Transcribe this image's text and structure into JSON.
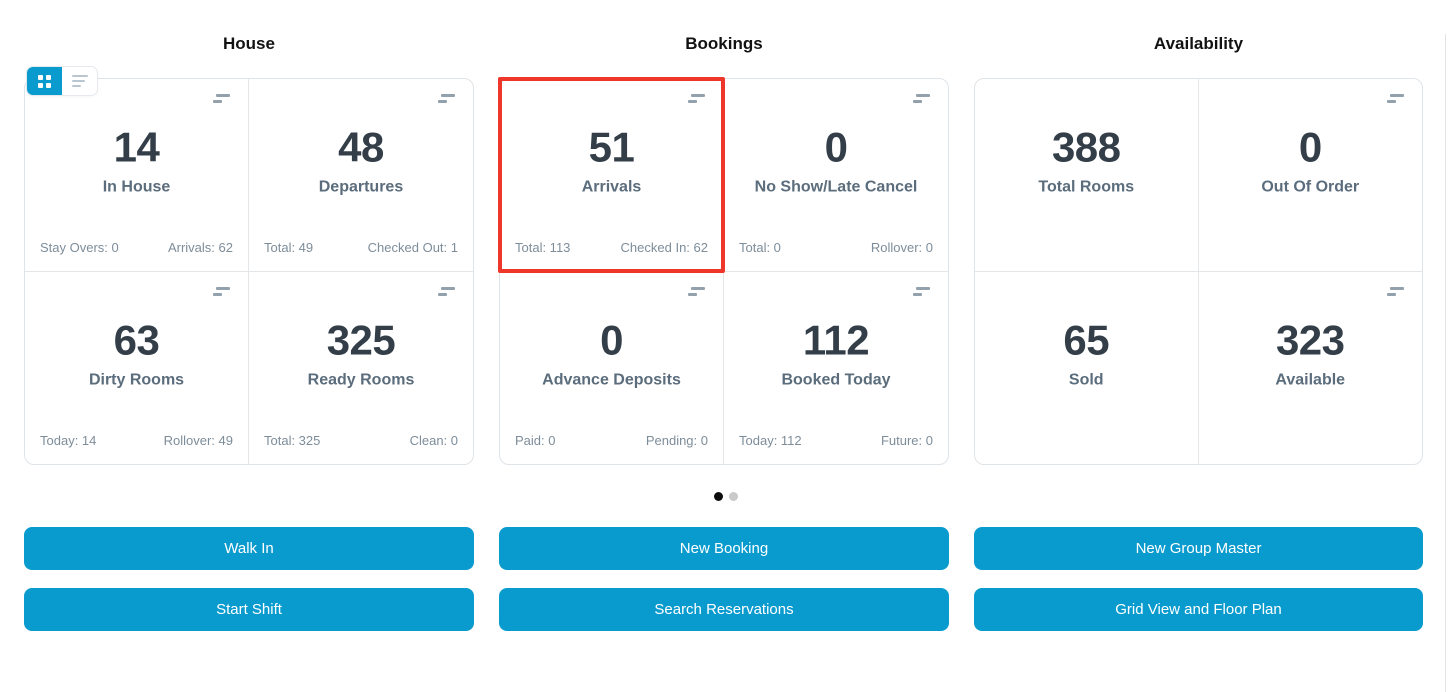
{
  "colors": {
    "accent": "#0a9bce",
    "highlight_border": "#ee372a",
    "value_text": "#333e48",
    "label_text": "#5b6d7c",
    "footer_text": "#7e8d9a",
    "dot_active": "#0d0d0d",
    "dot_inactive": "#c9c9c9"
  },
  "view_toggle": {
    "grid_icon": "grid-view-icon",
    "list_icon": "list-view-icon",
    "active": "grid"
  },
  "sections": [
    {
      "title": "House",
      "cards": [
        {
          "value": "14",
          "label": "In House",
          "foot_left": "Stay Overs: 0",
          "foot_right": "Arrivals: 62"
        },
        {
          "value": "48",
          "label": "Departures",
          "foot_left": "Total: 49",
          "foot_right": "Checked Out: 1"
        },
        {
          "value": "63",
          "label": "Dirty Rooms",
          "foot_left": "Today: 14",
          "foot_right": "Rollover: 49"
        },
        {
          "value": "325",
          "label": "Ready Rooms",
          "foot_left": "Total: 325",
          "foot_right": "Clean: 0"
        }
      ]
    },
    {
      "title": "Bookings",
      "cards": [
        {
          "value": "51",
          "label": "Arrivals",
          "foot_left": "Total: 113",
          "foot_right": "Checked In: 62",
          "highlighted": true
        },
        {
          "value": "0",
          "label": "No Show/Late Cancel",
          "foot_left": "Total: 0",
          "foot_right": "Rollover: 0"
        },
        {
          "value": "0",
          "label": "Advance Deposits",
          "foot_left": "Paid: 0",
          "foot_right": "Pending: 0"
        },
        {
          "value": "112",
          "label": "Booked Today",
          "foot_left": "Today: 112",
          "foot_right": "Future: 0"
        }
      ]
    },
    {
      "title": "Availability",
      "cards": [
        {
          "value": "388",
          "label": "Total Rooms"
        },
        {
          "value": "0",
          "label": "Out Of Order"
        },
        {
          "value": "65",
          "label": "Sold"
        },
        {
          "value": "323",
          "label": "Available"
        }
      ]
    }
  ],
  "pagination": {
    "total_dots": 2,
    "active_index": 0
  },
  "action_buttons": [
    "Walk In",
    "New Booking",
    "New Group Master",
    "Start Shift",
    "Search Reservations",
    "Grid View and Floor Plan"
  ]
}
